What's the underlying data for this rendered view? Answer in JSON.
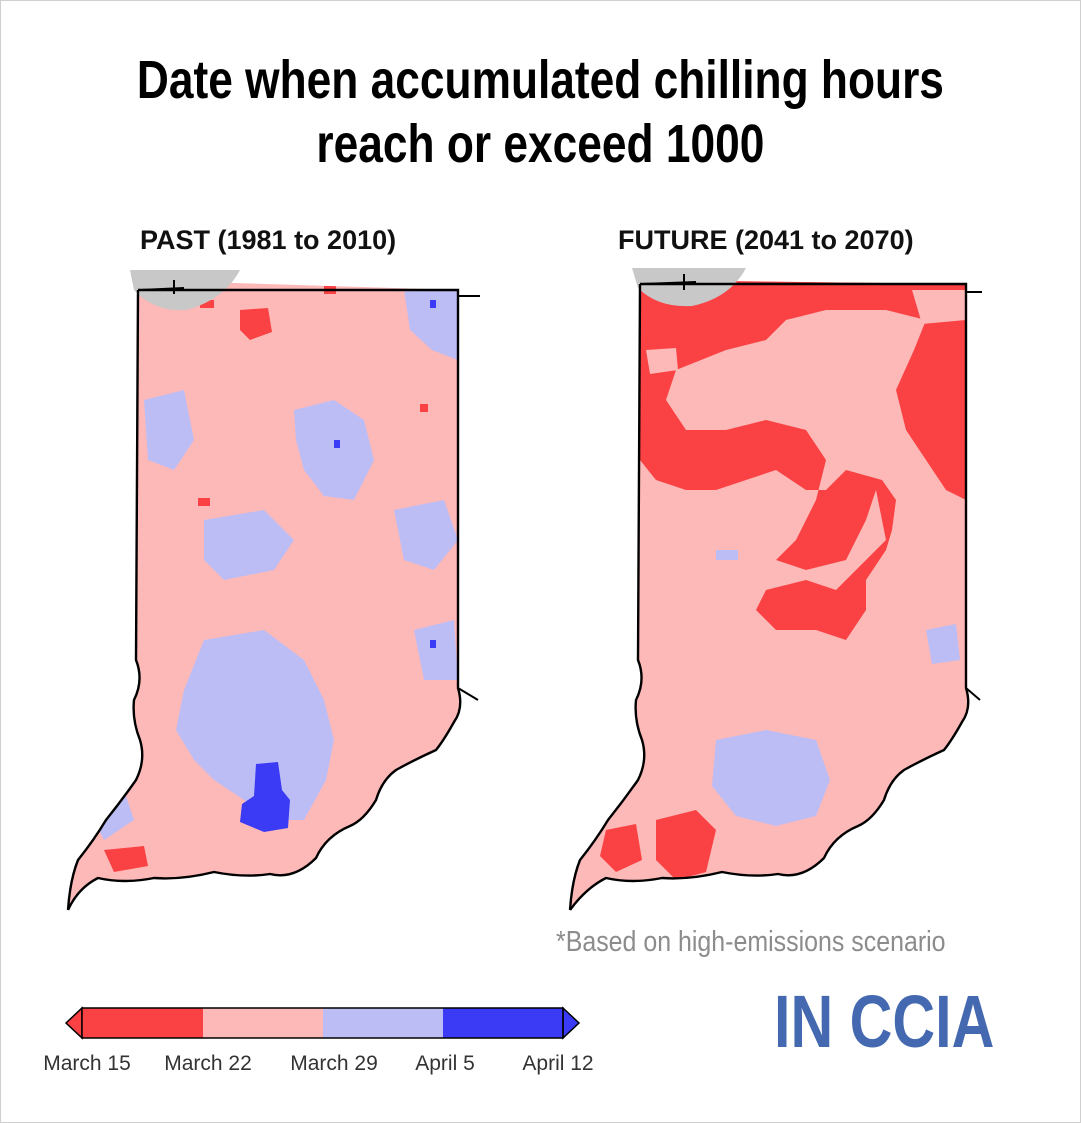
{
  "title_line1": "Date when accumulated chilling hours",
  "title_line2": "reach or exceed 1000",
  "panels": {
    "past": {
      "label": "PAST (1981 to 2010)"
    },
    "future": {
      "label": "FUTURE (2041 to 2070)"
    }
  },
  "footnote": "*Based on high-emissions scenario",
  "logo_text": "IN CCIA",
  "legend": {
    "ticks": [
      "March 15",
      "March 22",
      "March 29",
      "April 5",
      "April 12"
    ],
    "colors": [
      "#fa4143",
      "#fdb8b8",
      "#bdbdf6",
      "#3b3bf5"
    ],
    "extends": "both"
  },
  "colors": {
    "early": "#fa4143",
    "mid_early": "#fdb8b8",
    "mid_late": "#bdbdf6",
    "late": "#3b3bf5",
    "logo": "#4469b1",
    "lake": "#c8c8c8"
  }
}
